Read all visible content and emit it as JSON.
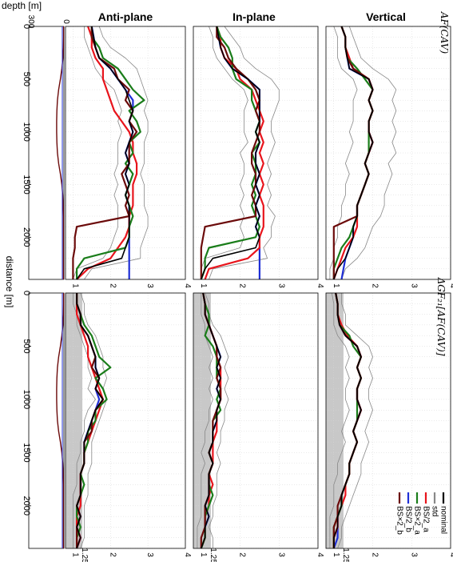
{
  "chart_data": {
    "type": "line",
    "orientation": "rotated-90",
    "column_titles": [
      "Anti-plane",
      "In-plane",
      "Vertical"
    ],
    "row_labels": [
      "AF(CAV)",
      "ΔGF₂₁[AF(CAV)]"
    ],
    "depth_axis": {
      "label": "depth [m]",
      "ticks": [
        300,
        0
      ]
    },
    "distance_axis": {
      "label": "distance [m]",
      "ticks": [
        0,
        500,
        1000,
        1500,
        2000
      ],
      "range": [
        0,
        2400
      ]
    },
    "value_axis": {
      "ticks": [
        "1",
        "2",
        "3",
        "4"
      ],
      "range": [
        0.8,
        4
      ]
    },
    "value_axis_extra_tick": "1.25",
    "shaded_band": [
      0.8,
      1.25
    ],
    "legend": {
      "position": "bottom-right",
      "entries": [
        {
          "name": "nominal",
          "color": "#000000"
        },
        {
          "name": "std",
          "color": "#888888"
        },
        {
          "name": "BS/2_a",
          "color": "#e8141c"
        },
        {
          "name": "BS×2_a",
          "color": "#1a7d1a"
        },
        {
          "name": "BS/2_b",
          "color": "#1f2fd6"
        },
        {
          "name": "BS×2_b",
          "color": "#6b0a0a"
        }
      ]
    },
    "series_colors": {
      "nominal": "#000000",
      "std": "#888888",
      "bs2a_div": "#e8141c",
      "bs2a_mul": "#1a7d1a",
      "bs2b_div": "#1f2fd6",
      "bs2b_mul": "#6b0a0a"
    },
    "profile_distance": [
      0,
      100,
      200,
      300,
      400,
      500,
      600,
      700,
      800,
      900,
      1000,
      1100,
      1200,
      1300,
      1400,
      1500,
      1600,
      1700,
      1800,
      1900,
      2000,
      2100,
      2200,
      2300,
      2400
    ],
    "profile_depth_m": [
      3,
      3,
      4,
      8,
      18,
      30,
      45,
      55,
      60,
      62,
      62,
      60,
      55,
      45,
      30,
      18,
      10,
      6,
      4,
      4,
      4,
      4,
      4,
      4,
      4
    ],
    "x": [
      0,
      100,
      200,
      300,
      400,
      500,
      600,
      700,
      800,
      900,
      1000,
      1100,
      1200,
      1300,
      1400,
      1500,
      1600,
      1700,
      1800,
      1900,
      2000,
      2100,
      2200,
      2300,
      2400
    ],
    "af_cav": {
      "anti_plane": {
        "nominal": [
          1.5,
          1.55,
          1.6,
          1.7,
          2.0,
          2.2,
          2.4,
          2.5,
          2.6,
          2.5,
          2.6,
          2.5,
          2.4,
          2.5,
          2.4,
          2.5,
          2.4,
          2.5,
          2.5,
          2.5,
          2.5,
          2.4,
          2.3,
          1.3,
          1.1
        ],
        "bs2a_div": [
          1.4,
          1.5,
          1.5,
          1.6,
          1.8,
          1.8,
          1.9,
          2.0,
          2.1,
          2.3,
          2.5,
          2.6,
          2.6,
          2.7,
          2.7,
          2.6,
          2.6,
          2.6,
          2.5,
          2.5,
          2.4,
          2.2,
          2.0,
          1.4,
          1.1
        ],
        "bs2a_mul": [
          1.5,
          1.5,
          1.7,
          1.8,
          2.2,
          2.4,
          2.6,
          2.9,
          2.5,
          2.7,
          2.8,
          2.5,
          2.6,
          2.4,
          2.6,
          2.5,
          2.4,
          2.5,
          2.6,
          2.5,
          2.5,
          2.4,
          1.3,
          1.1,
          1.1
        ],
        "bs2b_div": [
          1.5,
          1.55,
          1.6,
          1.7,
          2.0,
          2.2,
          2.4,
          2.6,
          2.6,
          2.5,
          2.6,
          2.5,
          2.4,
          2.5,
          2.4,
          2.5,
          2.4,
          2.5,
          2.5,
          2.5,
          2.5,
          2.5,
          2.5,
          2.5,
          2.5
        ],
        "bs2b_mul": [
          1.5,
          1.5,
          1.6,
          1.7,
          2.1,
          2.2,
          2.5,
          2.4,
          2.6,
          2.5,
          2.7,
          2.5,
          2.5,
          2.5,
          2.3,
          2.4,
          2.5,
          2.4,
          2.5,
          1.1,
          1.05,
          1.05,
          1.0,
          1.0,
          1.0
        ],
        "std_hi": [
          1.7,
          1.8,
          2.0,
          2.4,
          2.7,
          2.8,
          2.9,
          3.0,
          2.9,
          3.0,
          3.0,
          2.9,
          2.9,
          2.9,
          2.8,
          2.9,
          2.9,
          2.9,
          3.0,
          3.0,
          2.9,
          2.8,
          2.8,
          1.5,
          1.3
        ],
        "std_lo": [
          1.3,
          1.3,
          1.4,
          1.5,
          1.6,
          1.8,
          2.1,
          2.2,
          2.3,
          2.2,
          2.3,
          2.2,
          2.2,
          2.2,
          2.1,
          2.2,
          2.1,
          2.2,
          2.2,
          2.2,
          2.1,
          2.0,
          1.8,
          1.1,
          1.0
        ]
      },
      "in_plane": {
        "nominal": [
          1.4,
          1.45,
          1.5,
          1.6,
          1.8,
          2.2,
          2.5,
          2.5,
          2.5,
          2.5,
          2.4,
          2.5,
          2.4,
          2.4,
          2.5,
          2.4,
          2.5,
          2.4,
          2.5,
          2.4,
          2.5,
          2.4,
          1.3,
          1.1,
          1.0
        ],
        "bs2a_div": [
          1.4,
          1.5,
          1.5,
          1.6,
          1.9,
          2.0,
          2.3,
          2.4,
          2.5,
          2.6,
          2.5,
          2.6,
          2.5,
          2.6,
          2.5,
          2.6,
          2.5,
          2.6,
          2.6,
          2.6,
          2.5,
          2.5,
          2.2,
          1.2,
          1.1
        ],
        "bs2a_mul": [
          1.4,
          1.5,
          1.7,
          1.8,
          1.8,
          1.9,
          2.3,
          2.3,
          2.4,
          2.5,
          2.4,
          2.5,
          2.3,
          2.4,
          2.4,
          2.3,
          2.4,
          2.3,
          2.4,
          2.5,
          2.4,
          1.2,
          1.1,
          1.1,
          1.0
        ],
        "bs2b_div": [
          1.4,
          1.45,
          1.5,
          1.6,
          1.8,
          2.2,
          2.5,
          2.5,
          2.5,
          2.5,
          2.4,
          2.5,
          2.4,
          2.4,
          2.5,
          2.4,
          2.5,
          2.4,
          2.5,
          2.4,
          2.5,
          2.5,
          2.5,
          2.5,
          2.5
        ],
        "bs2b_mul": [
          1.4,
          1.4,
          1.6,
          1.7,
          1.9,
          2.2,
          2.4,
          2.5,
          2.4,
          2.5,
          2.5,
          2.4,
          2.3,
          2.3,
          2.4,
          2.4,
          2.3,
          2.4,
          2.4,
          1.1,
          1.05,
          1.0,
          1.0,
          1.0,
          1.0
        ],
        "std_hi": [
          1.6,
          1.8,
          2.0,
          2.1,
          2.4,
          2.8,
          3.0,
          3.0,
          2.9,
          2.8,
          2.8,
          2.9,
          2.8,
          2.7,
          2.8,
          2.7,
          2.8,
          2.7,
          2.9,
          2.8,
          2.8,
          2.6,
          2.7,
          1.3,
          1.2
        ],
        "std_lo": [
          1.2,
          1.3,
          1.3,
          1.4,
          1.6,
          1.8,
          2.1,
          2.2,
          2.1,
          2.1,
          2.1,
          2.2,
          2.0,
          2.1,
          2.1,
          2.0,
          2.1,
          2.0,
          2.1,
          2.0,
          2.1,
          2.0,
          1.1,
          1.0,
          1.0
        ]
      },
      "vertical": {
        "nominal": [
          1.2,
          1.3,
          1.3,
          1.35,
          1.4,
          1.9,
          2.0,
          1.9,
          2.0,
          1.9,
          1.9,
          2.0,
          1.9,
          1.8,
          1.9,
          1.8,
          1.7,
          1.6,
          1.6,
          1.5,
          1.5,
          1.4,
          1.3,
          1.1,
          1.0
        ],
        "bs2a_div": [
          1.2,
          1.3,
          1.3,
          1.4,
          1.5,
          1.9,
          2.0,
          1.9,
          2.0,
          1.9,
          1.9,
          2.0,
          1.9,
          1.8,
          1.9,
          1.8,
          1.7,
          1.6,
          1.6,
          1.6,
          1.5,
          1.3,
          1.2,
          1.1,
          1.0
        ],
        "bs2a_mul": [
          1.2,
          1.3,
          1.3,
          1.35,
          1.6,
          1.8,
          2.0,
          1.9,
          2.0,
          1.9,
          1.9,
          1.9,
          1.9,
          1.8,
          1.9,
          1.8,
          1.7,
          1.6,
          1.6,
          1.5,
          1.4,
          1.2,
          1.1,
          1.0,
          1.0
        ],
        "bs2b_div": [
          1.2,
          1.3,
          1.3,
          1.35,
          1.4,
          1.9,
          2.0,
          1.9,
          2.0,
          1.9,
          1.9,
          2.0,
          1.9,
          1.8,
          1.9,
          1.8,
          1.7,
          1.6,
          1.6,
          1.5,
          1.5,
          1.4,
          1.3,
          1.25,
          1.2
        ],
        "bs2b_mul": [
          1.2,
          1.3,
          1.3,
          1.35,
          1.5,
          1.9,
          2.0,
          1.9,
          2.0,
          1.9,
          1.9,
          2.0,
          1.9,
          1.8,
          1.9,
          1.8,
          1.7,
          1.6,
          1.6,
          1.0,
          1.0,
          1.0,
          1.0,
          1.0,
          1.0
        ],
        "std_hi": [
          1.4,
          1.5,
          1.6,
          1.7,
          2.0,
          2.4,
          2.6,
          2.5,
          2.6,
          2.5,
          2.6,
          2.5,
          2.6,
          2.4,
          2.5,
          2.4,
          2.3,
          2.3,
          2.2,
          2.0,
          1.9,
          1.8,
          1.6,
          1.3,
          1.2
        ],
        "std_lo": [
          1.0,
          1.1,
          1.1,
          1.1,
          1.2,
          1.5,
          1.6,
          1.5,
          1.5,
          1.5,
          1.4,
          1.5,
          1.4,
          1.3,
          1.4,
          1.3,
          1.3,
          1.2,
          1.2,
          1.1,
          1.1,
          1.0,
          1.0,
          0.9,
          0.9
        ]
      }
    },
    "delta_gf": {
      "anti_plane": {
        "nominal": [
          1.1,
          1.1,
          1.2,
          1.2,
          1.4,
          1.5,
          1.6,
          1.6,
          1.7,
          1.6,
          1.8,
          1.6,
          1.5,
          1.4,
          1.3,
          1.3,
          1.3,
          1.2,
          1.2,
          1.2,
          1.1,
          1.2,
          1.1,
          1.2,
          1.1
        ],
        "bs2a_div": [
          1.1,
          1.1,
          1.1,
          1.2,
          1.3,
          1.4,
          1.4,
          1.5,
          1.6,
          1.7,
          1.8,
          1.7,
          1.6,
          1.5,
          1.4,
          1.3,
          1.3,
          1.2,
          1.2,
          1.2,
          1.2,
          1.1,
          1.1,
          1.2,
          1.1
        ],
        "bs2a_mul": [
          1.1,
          1.1,
          1.2,
          1.3,
          1.5,
          1.6,
          1.7,
          2.0,
          1.6,
          1.8,
          1.9,
          1.6,
          1.6,
          1.4,
          1.4,
          1.3,
          1.3,
          1.2,
          1.3,
          1.2,
          1.1,
          1.1,
          1.2,
          1.1,
          1.1
        ],
        "bs2b_div": [
          1.1,
          1.1,
          1.2,
          1.2,
          1.4,
          1.5,
          1.6,
          1.6,
          1.7,
          1.6,
          1.7,
          1.6,
          1.5,
          1.4,
          1.3,
          1.3,
          1.3,
          1.2,
          1.2,
          1.2,
          1.1,
          1.2,
          1.1,
          1.2,
          1.1
        ],
        "bs2b_mul": [
          1.1,
          1.1,
          1.2,
          1.2,
          1.4,
          1.5,
          1.6,
          1.5,
          1.7,
          1.6,
          1.8,
          1.6,
          1.5,
          1.5,
          1.3,
          1.3,
          1.3,
          1.2,
          1.2,
          1.2,
          1.1,
          1.2,
          1.1,
          1.1,
          1.1
        ],
        "std_hi": [
          1.2,
          1.3,
          1.3,
          1.4,
          1.6,
          1.7,
          1.8,
          1.8,
          1.9,
          1.8,
          1.9,
          1.8,
          1.7,
          1.6,
          1.5,
          1.5,
          1.5,
          1.4,
          1.4,
          1.4,
          1.3,
          1.3,
          1.3,
          1.3,
          1.2
        ],
        "std_lo": [
          1.0,
          1.0,
          1.1,
          1.1,
          1.2,
          1.3,
          1.4,
          1.4,
          1.5,
          1.4,
          1.6,
          1.4,
          1.3,
          1.3,
          1.2,
          1.2,
          1.1,
          1.1,
          1.1,
          1.0,
          1.0,
          1.0,
          1.0,
          1.0,
          1.0
        ]
      },
      "in_plane": {
        "nominal": [
          1.05,
          1.1,
          1.1,
          1.2,
          1.3,
          1.4,
          1.5,
          1.4,
          1.5,
          1.4,
          1.5,
          1.4,
          1.4,
          1.3,
          1.3,
          1.2,
          1.3,
          1.2,
          1.2,
          1.2,
          1.1,
          1.2,
          1.1,
          1.1,
          1.0
        ],
        "bs2a_div": [
          1.05,
          1.1,
          1.1,
          1.2,
          1.3,
          1.4,
          1.4,
          1.5,
          1.5,
          1.5,
          1.5,
          1.4,
          1.4,
          1.4,
          1.3,
          1.3,
          1.3,
          1.2,
          1.3,
          1.2,
          1.2,
          1.1,
          1.1,
          1.1,
          1.0
        ],
        "bs2a_mul": [
          1.05,
          1.1,
          1.2,
          1.2,
          1.1,
          1.3,
          1.4,
          1.4,
          1.4,
          1.5,
          1.4,
          1.5,
          1.3,
          1.3,
          1.3,
          1.2,
          1.3,
          1.2,
          1.2,
          1.3,
          1.2,
          1.1,
          1.1,
          1.1,
          1.0
        ],
        "bs2b_div": [
          1.05,
          1.1,
          1.1,
          1.2,
          1.3,
          1.4,
          1.5,
          1.4,
          1.5,
          1.4,
          1.5,
          1.4,
          1.4,
          1.3,
          1.3,
          1.2,
          1.3,
          1.2,
          1.2,
          1.2,
          1.1,
          1.2,
          1.1,
          1.1,
          1.0
        ],
        "bs2b_mul": [
          1.05,
          1.1,
          1.1,
          1.2,
          1.3,
          1.4,
          1.4,
          1.5,
          1.4,
          1.5,
          1.5,
          1.4,
          1.3,
          1.3,
          1.3,
          1.2,
          1.3,
          1.2,
          1.2,
          1.2,
          1.1,
          1.1,
          1.1,
          1.0,
          1.0
        ],
        "std_hi": [
          1.1,
          1.2,
          1.2,
          1.3,
          1.5,
          1.6,
          1.7,
          1.6,
          1.7,
          1.6,
          1.7,
          1.6,
          1.6,
          1.5,
          1.5,
          1.4,
          1.5,
          1.4,
          1.4,
          1.4,
          1.3,
          1.3,
          1.2,
          1.3,
          1.3
        ],
        "std_lo": [
          1.0,
          1.0,
          1.0,
          1.1,
          1.1,
          1.2,
          1.3,
          1.2,
          1.3,
          1.2,
          1.3,
          1.2,
          1.2,
          1.1,
          1.1,
          1.0,
          1.1,
          1.0,
          1.0,
          1.0,
          1.0,
          1.0,
          0.9,
          0.9,
          0.9
        ]
      },
      "vertical": {
        "nominal": [
          1.05,
          1.1,
          1.1,
          1.15,
          1.3,
          1.6,
          1.7,
          1.6,
          1.7,
          1.6,
          1.6,
          1.7,
          1.6,
          1.5,
          1.6,
          1.5,
          1.4,
          1.4,
          1.3,
          1.2,
          1.2,
          1.1,
          1.1,
          1.0,
          1.0
        ],
        "bs2a_div": [
          1.05,
          1.1,
          1.1,
          1.2,
          1.35,
          1.6,
          1.7,
          1.6,
          1.7,
          1.6,
          1.6,
          1.7,
          1.6,
          1.5,
          1.6,
          1.5,
          1.4,
          1.4,
          1.3,
          1.3,
          1.2,
          1.1,
          1.1,
          1.0,
          1.0
        ],
        "bs2a_mul": [
          1.05,
          1.1,
          1.1,
          1.15,
          1.4,
          1.5,
          1.7,
          1.6,
          1.7,
          1.6,
          1.6,
          1.6,
          1.6,
          1.5,
          1.6,
          1.5,
          1.4,
          1.4,
          1.3,
          1.2,
          1.2,
          1.1,
          1.0,
          1.0,
          1.0
        ],
        "bs2b_div": [
          1.05,
          1.1,
          1.1,
          1.15,
          1.3,
          1.6,
          1.7,
          1.6,
          1.7,
          1.6,
          1.6,
          1.7,
          1.6,
          1.5,
          1.6,
          1.5,
          1.4,
          1.4,
          1.3,
          1.2,
          1.2,
          1.1,
          1.1,
          1.1,
          1.0
        ],
        "bs2b_mul": [
          1.05,
          1.1,
          1.1,
          1.15,
          1.3,
          1.6,
          1.7,
          1.6,
          1.7,
          1.6,
          1.6,
          1.7,
          1.6,
          1.5,
          1.6,
          1.5,
          1.4,
          1.4,
          1.3,
          1.2,
          1.1,
          1.1,
          1.0,
          1.0,
          1.0
        ],
        "std_hi": [
          1.2,
          1.2,
          1.3,
          1.3,
          1.6,
          1.9,
          2.0,
          1.9,
          2.0,
          1.9,
          1.9,
          2.0,
          1.9,
          1.8,
          1.9,
          1.8,
          1.7,
          1.7,
          1.6,
          1.5,
          1.4,
          1.3,
          1.2,
          1.2,
          1.1
        ],
        "std_lo": [
          0.95,
          1.0,
          1.0,
          1.0,
          1.1,
          1.3,
          1.4,
          1.3,
          1.4,
          1.3,
          1.3,
          1.4,
          1.3,
          1.2,
          1.3,
          1.2,
          1.1,
          1.1,
          1.0,
          1.0,
          1.0,
          0.9,
          0.9,
          0.9,
          0.9
        ]
      }
    }
  }
}
